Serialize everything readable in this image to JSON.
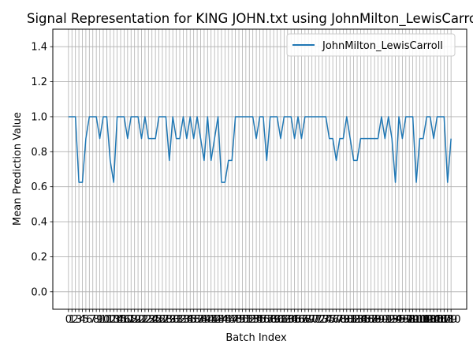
{
  "chart_data": {
    "type": "line",
    "title": "Signal Representation for KING JOHN.txt using JohnMilton_LewisCarroll",
    "xlabel": "Batch Index",
    "ylabel": "Mean Prediction Value",
    "xlim": [
      -4.5,
      114.5
    ],
    "ylim": [
      -0.1,
      1.5
    ],
    "yticks": [
      0.0,
      0.2,
      0.4,
      0.6,
      0.8,
      1.0,
      1.2,
      1.4
    ],
    "ytick_labels": [
      "0.0",
      "0.2",
      "0.4",
      "0.6",
      "0.8",
      "1.0",
      "1.2",
      "1.4"
    ],
    "grid": true,
    "legend_position": "upper right",
    "series": [
      {
        "name": "JohnMilton_LewisCarroll",
        "color": "#1f77b4",
        "x": [
          0,
          1,
          2,
          3,
          4,
          5,
          6,
          7,
          8,
          9,
          10,
          11,
          12,
          13,
          14,
          15,
          16,
          17,
          18,
          19,
          20,
          21,
          22,
          23,
          24,
          25,
          26,
          27,
          28,
          29,
          30,
          31,
          32,
          33,
          34,
          35,
          36,
          37,
          38,
          39,
          40,
          41,
          42,
          43,
          44,
          45,
          46,
          47,
          48,
          49,
          50,
          51,
          52,
          53,
          54,
          55,
          56,
          57,
          58,
          59,
          60,
          61,
          62,
          63,
          64,
          65,
          66,
          67,
          68,
          69,
          70,
          71,
          72,
          73,
          74,
          75,
          76,
          77,
          78,
          79,
          80,
          81,
          82,
          83,
          84,
          85,
          86,
          87,
          88,
          89,
          90,
          91,
          92,
          93,
          94,
          95,
          96,
          97,
          98,
          99,
          100,
          101,
          102,
          103,
          104,
          105,
          106,
          107,
          108,
          109,
          110
        ],
        "values": [
          1.0,
          1.0,
          1.0,
          0.625,
          0.625,
          0.875,
          1.0,
          1.0,
          1.0,
          0.875,
          1.0,
          1.0,
          0.75,
          0.625,
          1.0,
          1.0,
          1.0,
          0.875,
          1.0,
          1.0,
          1.0,
          0.875,
          1.0,
          0.875,
          0.875,
          0.875,
          1.0,
          1.0,
          1.0,
          0.75,
          1.0,
          0.875,
          0.875,
          1.0,
          0.875,
          1.0,
          0.875,
          1.0,
          0.875,
          0.75,
          1.0,
          0.75,
          0.875,
          1.0,
          0.625,
          0.625,
          0.75,
          0.75,
          1.0,
          1.0,
          1.0,
          1.0,
          1.0,
          1.0,
          0.875,
          1.0,
          1.0,
          0.75,
          1.0,
          1.0,
          1.0,
          0.875,
          1.0,
          1.0,
          1.0,
          0.875,
          1.0,
          0.875,
          1.0,
          1.0,
          1.0,
          1.0,
          1.0,
          1.0,
          1.0,
          0.875,
          0.875,
          0.75,
          0.875,
          0.875,
          1.0,
          0.875,
          0.75,
          0.75,
          0.875,
          0.875,
          0.875,
          0.875,
          0.875,
          0.875,
          1.0,
          0.875,
          1.0,
          0.875,
          0.625,
          1.0,
          0.875,
          1.0,
          1.0,
          1.0,
          0.625,
          0.875,
          0.875,
          1.0,
          1.0,
          0.875,
          1.0,
          1.0,
          1.0,
          0.625,
          0.875
        ]
      }
    ]
  }
}
